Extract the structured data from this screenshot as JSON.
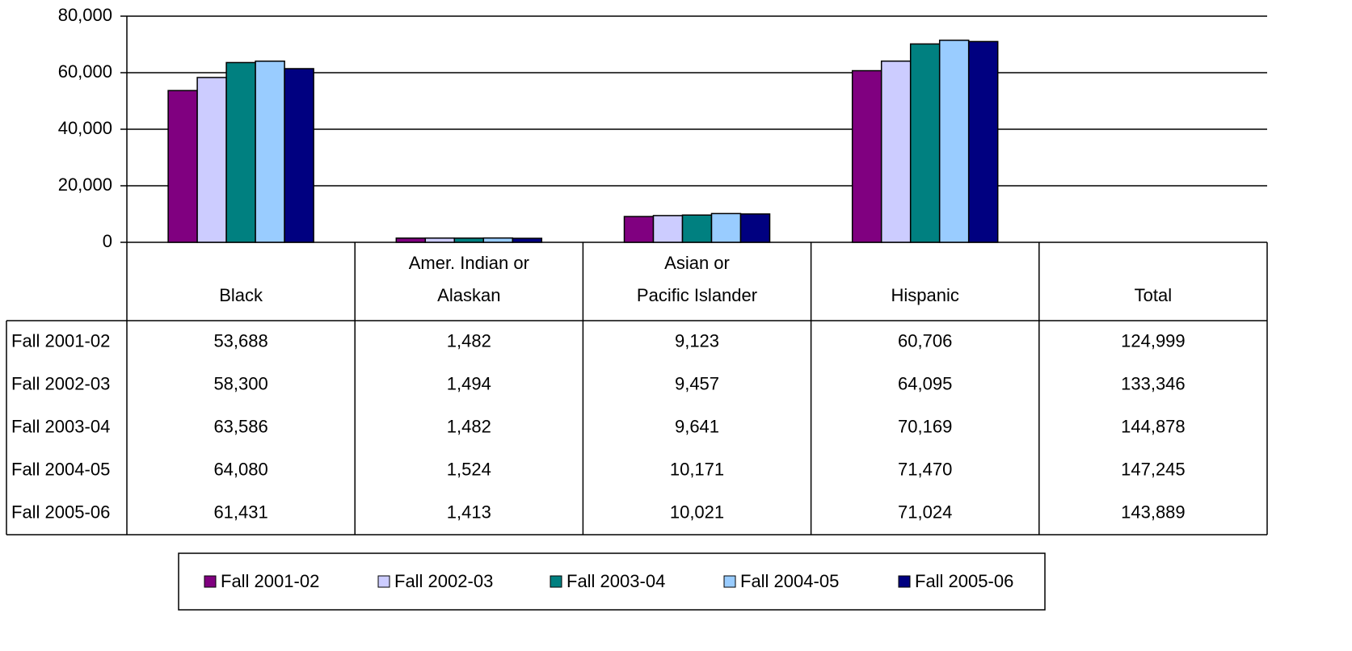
{
  "chart_data": {
    "type": "bar",
    "categories": [
      "Black",
      "Amer. Indian or\nAlaskan",
      "Asian or\nPacific Islander",
      "Hispanic",
      "Total"
    ],
    "series": [
      {
        "name": "Fall 2001-02",
        "color": "#800080",
        "values": [
          53688,
          1482,
          9123,
          60706,
          124999
        ],
        "value_labels": [
          "53,688",
          "1,482",
          "9,123",
          "60,706",
          "124,999"
        ]
      },
      {
        "name": "Fall 2002-03",
        "color": "#ccccff",
        "values": [
          58300,
          1494,
          9457,
          64095,
          133346
        ],
        "value_labels": [
          "58,300",
          "1,494",
          "9,457",
          "64,095",
          "133,346"
        ]
      },
      {
        "name": "Fall 2003-04",
        "color": "#008080",
        "values": [
          63586,
          1482,
          9641,
          70169,
          144878
        ],
        "value_labels": [
          "63,586",
          "1,482",
          "9,641",
          "70,169",
          "144,878"
        ]
      },
      {
        "name": "Fall 2004-05",
        "color": "#99ccff",
        "values": [
          64080,
          1524,
          10171,
          71470,
          147245
        ],
        "value_labels": [
          "64,080",
          "1,524",
          "10,171",
          "71,470",
          "147,245"
        ]
      },
      {
        "name": "Fall 2005-06",
        "color": "#000080",
        "values": [
          61431,
          1413,
          10021,
          71024,
          143889
        ],
        "value_labels": [
          "61,431",
          "1,413",
          "10,021",
          "71,024",
          "143,889"
        ]
      }
    ],
    "ylim": [
      0,
      80000
    ],
    "yticks": [
      0,
      {
        "value": 20000,
        "label": "20,000"
      },
      {
        "value": 40000,
        "label": "40,000"
      },
      {
        "value": 60000,
        "label": "60,000"
      },
      {
        "value": 80000,
        "label": "80,000"
      }
    ],
    "grid": true,
    "legend": "bottom"
  }
}
